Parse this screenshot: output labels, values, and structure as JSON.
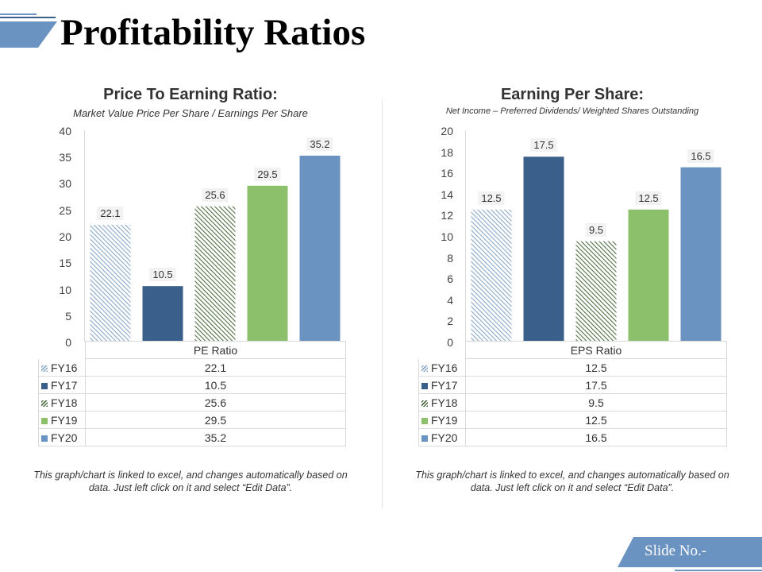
{
  "title": "Profitability Ratios",
  "slide_no": "Slide No.-",
  "colors": {
    "accent": "#6b93c2",
    "navy": "#3a5f8a",
    "green": "#8cc06a",
    "hatch_blue": "#8aa8c8",
    "hatch_green": "#4e6e42"
  },
  "chart_data": [
    {
      "type": "bar",
      "title": "Price To Earning Ratio:",
      "subtitle": "Market Value Price Per Share / Earnings Per Share",
      "table_header": "PE Ratio",
      "categories": [
        "FY16",
        "FY17",
        "FY18",
        "FY19",
        "FY20"
      ],
      "values": [
        22.1,
        10.5,
        25.6,
        29.5,
        35.2
      ],
      "value_labels": [
        "22.1",
        "10.5",
        "25.6",
        "29.5",
        "35.2"
      ],
      "ylim": [
        0,
        40
      ],
      "yticks": [
        "0",
        "5",
        "10",
        "15",
        "20",
        "25",
        "30",
        "35",
        "40"
      ],
      "note": "This graph/chart is linked to excel, and changes automatically based on data. Just left click on it and select “Edit Data”."
    },
    {
      "type": "bar",
      "title": "Earning Per Share:",
      "subtitle": "Net Income – Preferred Dividends/ Weighted Shares Outstanding",
      "table_header": "EPS Ratio",
      "categories": [
        "FY16",
        "FY17",
        "FY18",
        "FY19",
        "FY20"
      ],
      "values": [
        12.5,
        17.5,
        9.5,
        12.5,
        16.5
      ],
      "value_labels": [
        "12.5",
        "17.5",
        "9.5",
        "12.5",
        "16.5"
      ],
      "ylim": [
        0,
        20
      ],
      "yticks": [
        "0",
        "2",
        "4",
        "6",
        "8",
        "10",
        "12",
        "14",
        "16",
        "18",
        "20"
      ],
      "note": "This graph/chart is linked to excel, and changes automatically based on data. Just left click on it and select “Edit Data”."
    }
  ]
}
